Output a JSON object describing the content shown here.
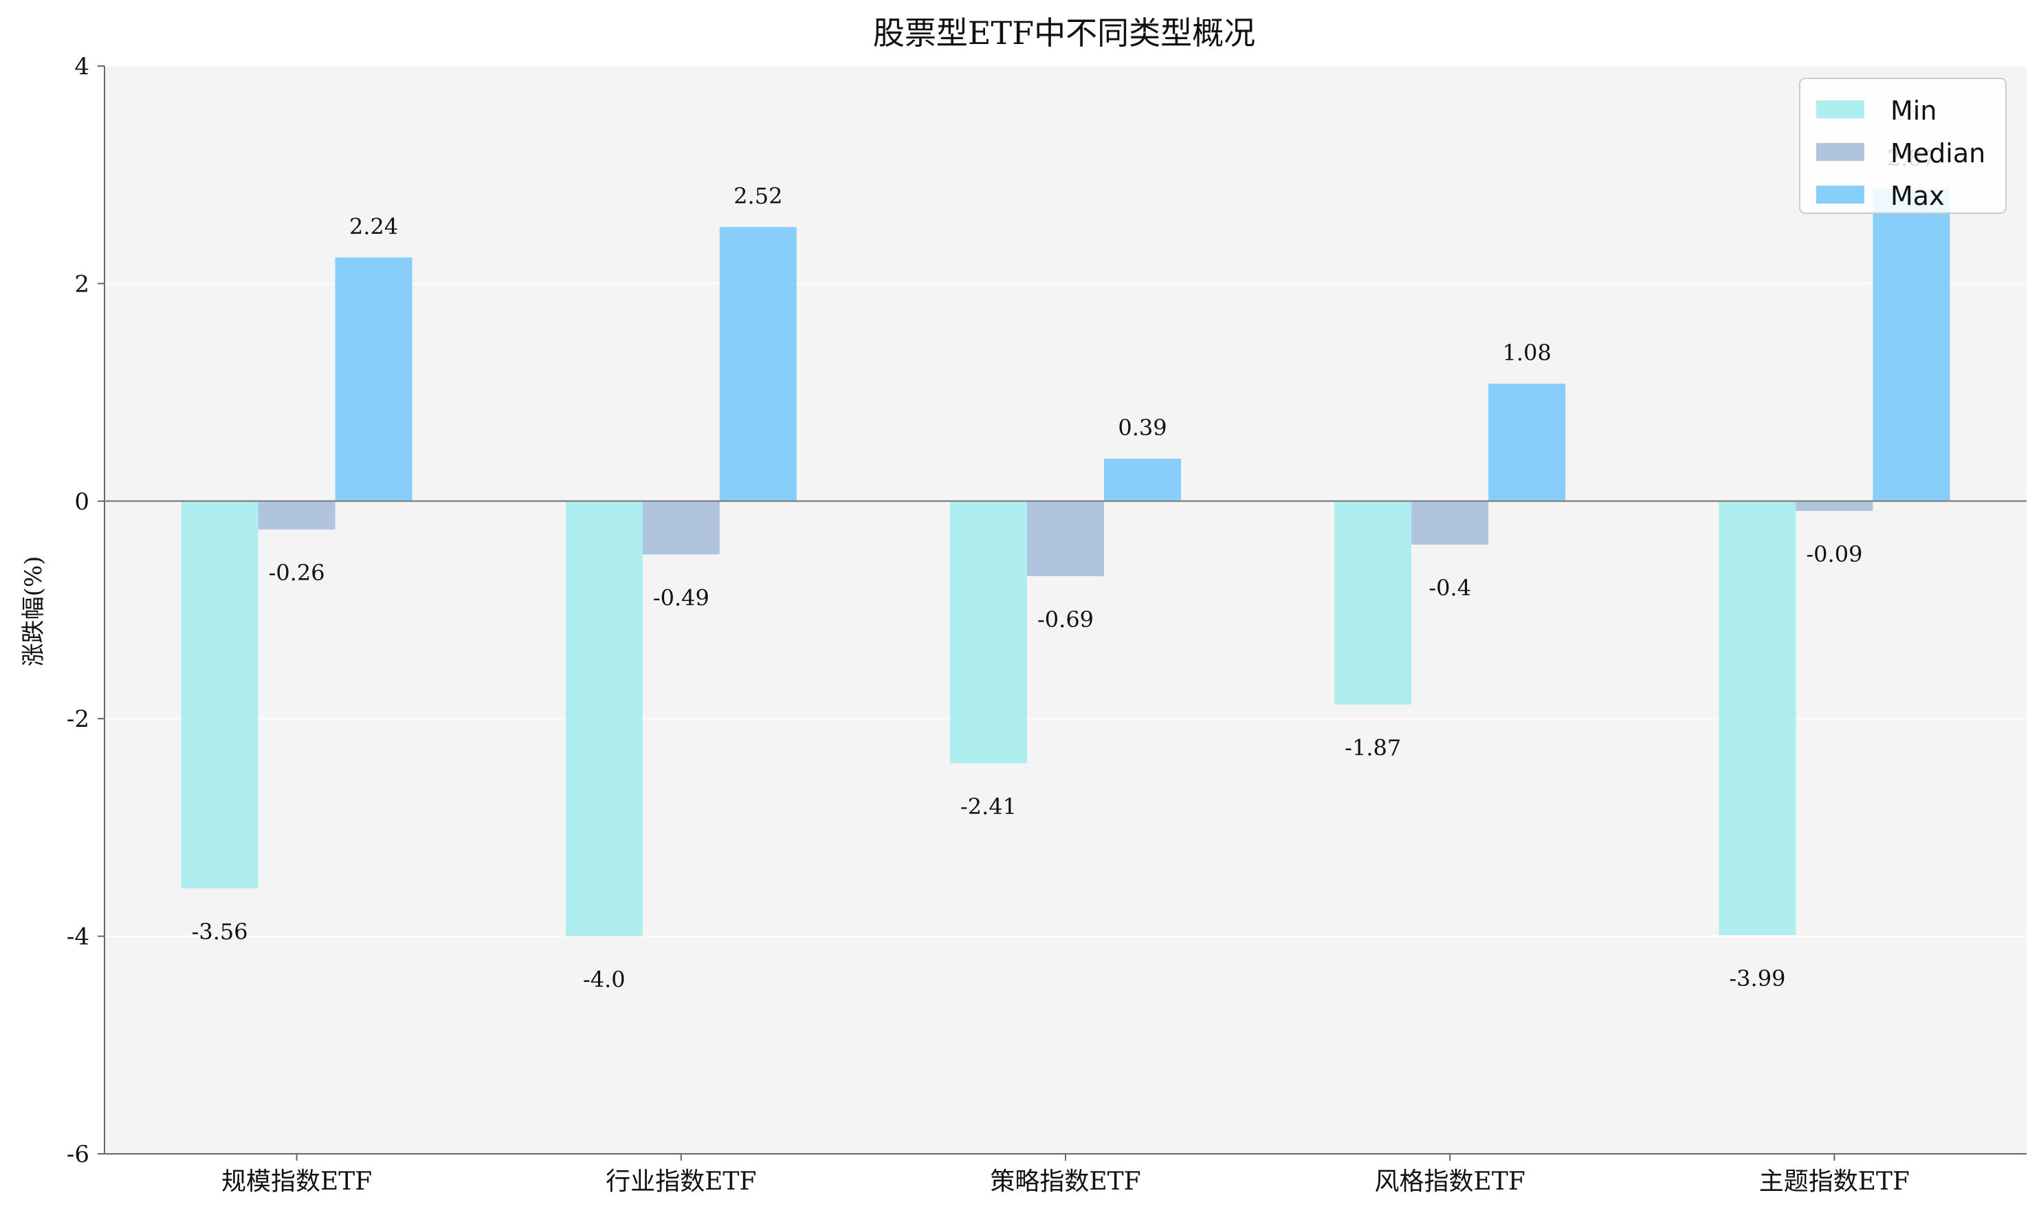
{
  "chart_data": {
    "type": "bar",
    "title": "股票型ETF中不同类型概况",
    "xlabel": "",
    "ylabel": "涨跌幅(%)",
    "ylim": [
      -6,
      4
    ],
    "yticks": [
      -6,
      -4,
      -2,
      0,
      2,
      4
    ],
    "ytick_labels": [
      "-6",
      "-4",
      "-2",
      "0",
      "2",
      "4"
    ],
    "grid": true,
    "legend_position": "top-right",
    "categories": [
      "规模指数ETF",
      "行业指数ETF",
      "策略指数ETF",
      "风格指数ETF",
      "主题指数ETF"
    ],
    "series": [
      {
        "name": "Min",
        "color": "#AFEEEE",
        "values": [
          -3.56,
          -4.0,
          -2.41,
          -1.87,
          -3.99
        ],
        "labels": [
          "-3.56",
          "-4.0",
          "-2.41",
          "-1.87",
          "-3.99"
        ]
      },
      {
        "name": "Median",
        "color": "#B0C4DE",
        "values": [
          -0.26,
          -0.49,
          -0.69,
          -0.4,
          -0.09
        ],
        "labels": [
          "-0.26",
          "-0.49",
          "-0.69",
          "-0.4",
          "-0.09"
        ]
      },
      {
        "name": "Max",
        "color": "#87CEFA",
        "values": [
          2.24,
          2.52,
          0.39,
          1.08,
          2.87
        ],
        "labels": [
          "2.24",
          "2.52",
          "0.39",
          "1.08",
          "2.87"
        ]
      }
    ],
    "colors": {
      "plot_background": "#F4F4F4",
      "grid": "#FFFFFF",
      "axis": "#666666",
      "zero_line": "#888888"
    }
  }
}
